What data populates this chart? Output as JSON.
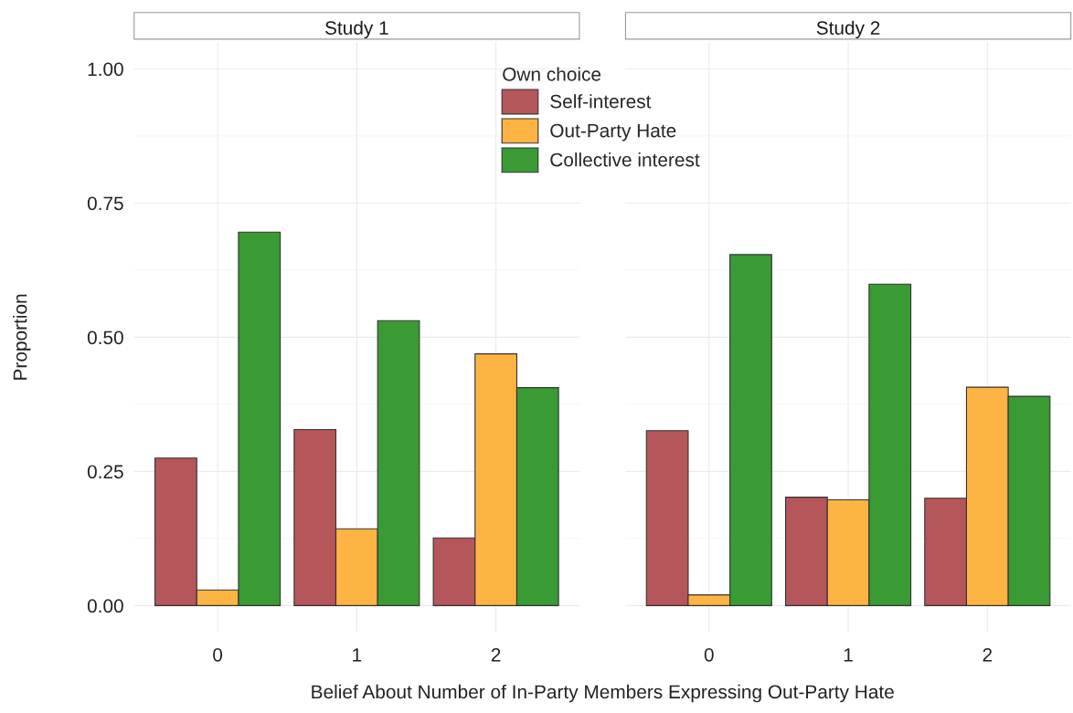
{
  "chart_data": [
    {
      "type": "bar",
      "title": "Study 1",
      "categories": [
        "0",
        "1",
        "2"
      ],
      "xlabel": "Belief About Number of In-Party Members Expressing Out-Party Hate",
      "ylabel": "Proportion",
      "legend_title": "Own choice",
      "legend": "top",
      "grid": true,
      "ylim": [
        -0.05,
        1.05
      ],
      "yticks": [
        {
          "value": 0,
          "label": "0.00"
        },
        {
          "value": 0.25,
          "label": "0.25"
        },
        {
          "value": 0.5,
          "label": "0.50"
        },
        {
          "value": 0.75,
          "label": "0.75"
        },
        {
          "value": 1,
          "label": "1.00"
        }
      ],
      "series": [
        {
          "name": "Self-interest",
          "color": "#b5565a",
          "values": [
            0.275,
            0.328,
            0.126
          ]
        },
        {
          "name": "Out-Party Hate",
          "color": "#fdb443",
          "values": [
            0.029,
            0.143,
            0.469
          ]
        },
        {
          "name": "Collective interest",
          "color": "#3a9a34",
          "values": [
            0.696,
            0.531,
            0.406
          ]
        }
      ]
    },
    {
      "type": "bar",
      "title": "Study 2",
      "categories": [
        "0",
        "1",
        "2"
      ],
      "grid": true,
      "tick_labels": "x",
      "ylim": [
        -0.05,
        1.05
      ],
      "yticks": [
        0,
        0.25,
        0.5,
        0.75,
        1
      ],
      "series": [
        {
          "color": "#b5565a",
          "values": [
            0.326,
            0.202,
            0.2
          ]
        },
        {
          "color": "#fdb443",
          "values": [
            0.02,
            0.197,
            0.407
          ]
        },
        {
          "color": "#3a9a34",
          "values": [
            0.654,
            0.599,
            0.39
          ]
        }
      ]
    }
  ]
}
